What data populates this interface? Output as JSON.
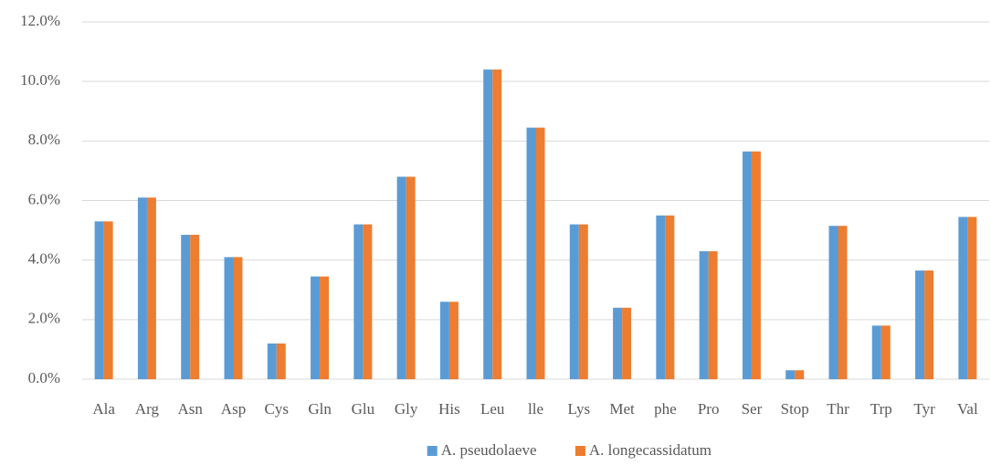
{
  "chart_data": {
    "type": "bar",
    "categories": [
      "Ala",
      "Arg",
      "Asn",
      "Asp",
      "Cys",
      "Gln",
      "Glu",
      "Gly",
      "His",
      "Leu",
      "lle",
      "Lys",
      "Met",
      "phe",
      "Pro",
      "Ser",
      "Stop",
      "Thr",
      "Trp",
      "Tyr",
      "Val"
    ],
    "series": [
      {
        "name": "A. pseudolaeve",
        "color": "#5b9bd5",
        "values": [
          5.3,
          6.1,
          4.85,
          4.1,
          1.2,
          3.45,
          5.2,
          6.8,
          2.6,
          10.4,
          8.45,
          5.2,
          2.4,
          5.5,
          4.3,
          7.65,
          0.3,
          5.15,
          1.8,
          3.65,
          5.45
        ]
      },
      {
        "name": "A. longecassidatum",
        "color": "#ed7d31",
        "values": [
          5.3,
          6.1,
          4.85,
          4.1,
          1.2,
          3.45,
          5.2,
          6.8,
          2.6,
          10.4,
          8.45,
          5.2,
          2.4,
          5.5,
          4.3,
          7.65,
          0.3,
          5.15,
          1.8,
          3.65,
          5.45
        ]
      }
    ],
    "ylim": [
      0,
      12
    ],
    "yticks": [
      {
        "value": 0,
        "label": "0.0%"
      },
      {
        "value": 2,
        "label": "2.0%"
      },
      {
        "value": 4,
        "label": "4.0%"
      },
      {
        "value": 6,
        "label": "6.0%"
      },
      {
        "value": 8,
        "label": "8.0%"
      },
      {
        "value": 10,
        "label": "10.0%"
      },
      {
        "value": 12,
        "label": "12.0%"
      }
    ],
    "grid": true,
    "legend": "bottom"
  }
}
